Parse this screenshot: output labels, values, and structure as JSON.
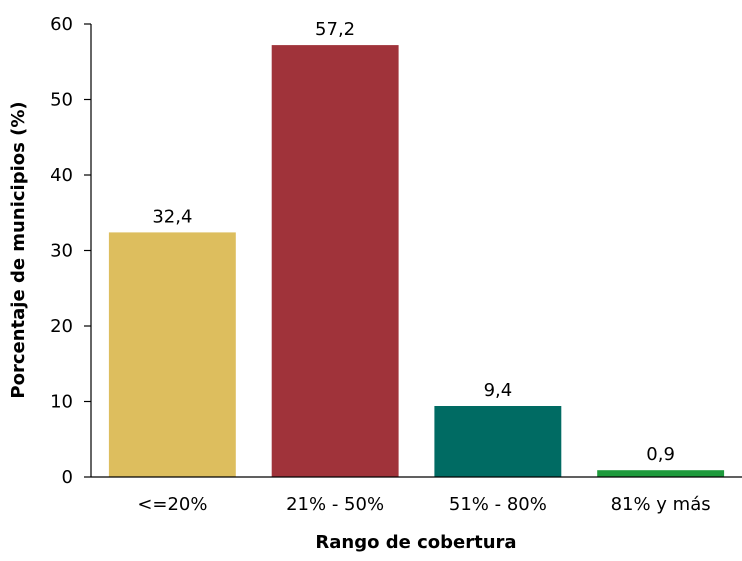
{
  "chart_data": {
    "type": "bar",
    "title": "",
    "xlabel": "Rango de cobertura",
    "ylabel": "Porcentaje de municipios (%)",
    "categories": [
      "<=20%",
      "21% - 50%",
      "51% - 80%",
      "81% y más"
    ],
    "values": [
      32.4,
      57.2,
      9.4,
      0.9
    ],
    "data_labels": [
      "32,4",
      "57,2",
      "9,4",
      "0,9"
    ],
    "colors": [
      "#DDBE5E",
      "#A0333A",
      "#006B63",
      "#1E9A3C"
    ],
    "ylim": [
      0,
      60
    ],
    "yticks": [
      0,
      10,
      20,
      30,
      40,
      50,
      60
    ],
    "ytick_labels": [
      "0",
      "10",
      "20",
      "30",
      "40",
      "50",
      "60"
    ],
    "grid": false,
    "legend": "none"
  }
}
